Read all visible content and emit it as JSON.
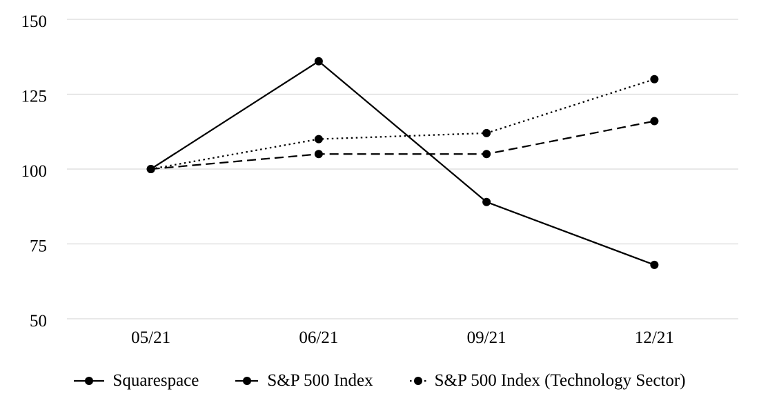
{
  "chart_data": {
    "type": "line",
    "x": [
      "05/21",
      "06/21",
      "09/21",
      "12/21"
    ],
    "series": [
      {
        "name": "Squarespace",
        "line_style": "solid",
        "marker": "circle",
        "values": [
          100,
          136,
          89,
          68
        ]
      },
      {
        "name": "S&P 500 Index",
        "line_style": "dashed",
        "marker": "circle",
        "values": [
          100,
          105,
          105,
          116
        ]
      },
      {
        "name": "S&P 500 Index (Technology Sector)",
        "line_style": "dotted",
        "marker": "circle",
        "values": [
          100,
          110,
          112,
          130
        ]
      }
    ],
    "title": "",
    "xlabel": "",
    "ylabel": "",
    "yticks": [
      50,
      75,
      100,
      125,
      150
    ],
    "ylim": [
      50,
      150
    ],
    "grid": true,
    "gridlines": "horizontal",
    "legend_position": "bottom",
    "colors": {
      "series": "#000000",
      "grid": "#d9d9d9",
      "text": "#000000",
      "background": "#ffffff"
    }
  }
}
